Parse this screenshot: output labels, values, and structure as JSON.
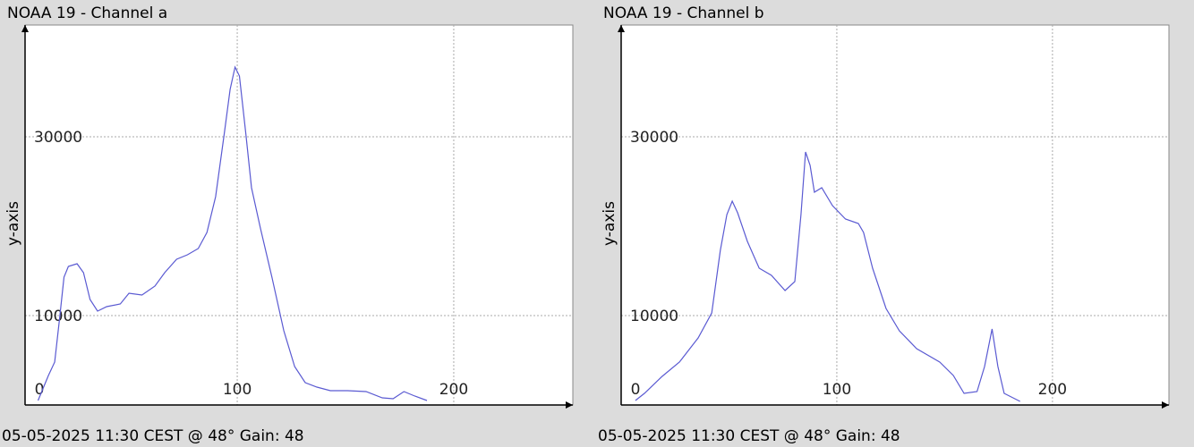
{
  "chart_data": [
    {
      "type": "line",
      "title": "NOAA 19 - Channel a",
      "ylabel": "y-axis",
      "caption": "05-05-2025 11:30 CEST @ 48° Gain: 48",
      "color": "#5a5ad2",
      "grid": true,
      "xlim": [
        2,
        255
      ],
      "xticks": [
        0,
        100,
        200
      ],
      "ylim": [
        0,
        42500
      ],
      "yticks": [
        10000,
        30000
      ],
      "x": [
        8,
        12.8,
        15.7,
        18,
        20,
        22,
        26,
        29,
        32,
        35.5,
        39.7,
        46,
        50,
        56,
        62,
        66.5,
        72,
        77,
        82,
        86,
        90,
        94,
        96.7,
        99,
        101,
        104,
        106.6,
        110.7,
        116,
        121.5,
        126.5,
        131.4,
        136.8,
        143,
        151,
        159.5,
        167,
        172,
        177,
        182,
        187.6
      ],
      "values": [
        500,
        3300,
        4800,
        9800,
        14300,
        15500,
        15800,
        14800,
        11800,
        10500,
        11000,
        11300,
        12500,
        12300,
        13300,
        14800,
        16300,
        16800,
        17500,
        19300,
        23300,
        30300,
        35300,
        37800,
        36800,
        30300,
        24300,
        19800,
        14300,
        8300,
        4300,
        2500,
        2000,
        1600,
        1600,
        1500,
        800,
        700,
        1500,
        1000,
        500
      ]
    },
    {
      "type": "line",
      "title": "NOAA 19 - Channel b",
      "ylabel": "y-axis",
      "caption": "05-05-2025 11:30 CEST @ 48° Gain: 48",
      "color": "#5a5ad2",
      "grid": true,
      "xlim": [
        0,
        254
      ],
      "xticks": [
        0,
        100,
        200
      ],
      "ylim": [
        0,
        42500
      ],
      "yticks": [
        10000,
        30000
      ],
      "x": [
        6.6,
        10.8,
        19,
        27,
        35.7,
        42,
        46,
        49,
        51.5,
        54,
        58.5,
        64,
        69.7,
        76,
        80.5,
        83.4,
        85.5,
        87.6,
        89.6,
        93,
        98,
        104,
        110,
        112.4,
        116.6,
        122.8,
        129,
        137,
        147.7,
        154,
        159,
        165,
        168.5,
        172,
        174.7,
        177.6,
        185
      ],
      "values": [
        500,
        1300,
        3200,
        4800,
        7500,
        10300,
        17300,
        21300,
        22800,
        21500,
        18300,
        15300,
        14500,
        12800,
        13800,
        21300,
        28300,
        26800,
        23800,
        24300,
        22300,
        20800,
        20300,
        19300,
        15300,
        10800,
        8300,
        6300,
        4800,
        3300,
        1300,
        1500,
        4300,
        8500,
        4300,
        1300,
        400
      ]
    }
  ]
}
